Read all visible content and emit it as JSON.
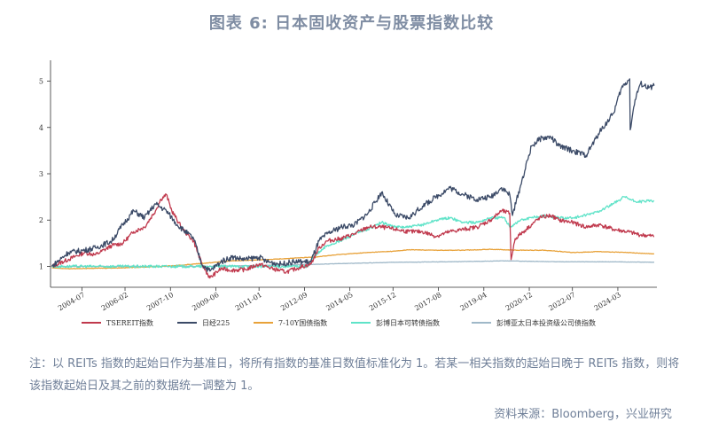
{
  "title": "图表 6:   日本固收资产与股票指数比较",
  "note": "注：以 REITs 指数的起始日作为基准日，将所有指数的基准日数值标准化为 1。若某一相关指数的起始日晚于 REITs 指数，则将该指数起始日及其之前的数据统一调整为 1。",
  "source": "资料来源：Bloomberg，兴业研究",
  "chart_data": {
    "type": "line",
    "title": "图表 6:   日本固收资产与股票指数比较",
    "xlabel": "",
    "ylabel": "",
    "x_ticks": [
      "2004-07",
      "2006-02",
      "2007-10",
      "2009-06",
      "2011-01",
      "2012-09",
      "2014-05",
      "2015-12",
      "2017-08",
      "2019-04",
      "2020-12",
      "2022-07",
      "2024-03"
    ],
    "y_ticks": [
      1,
      2,
      3,
      4,
      5
    ],
    "ylim": [
      0.55,
      5.45
    ],
    "xlim": [
      2003.35,
      2025.6
    ],
    "grid": false,
    "legend_position": "bottom",
    "series": [
      {
        "name": "TSEREIT指数",
        "color": "#c0394d",
        "x": [
          2003.4,
          2004.0,
          2004.6,
          2005.0,
          2005.6,
          2006.0,
          2006.4,
          2006.8,
          2007.2,
          2007.4,
          2007.6,
          2007.8,
          2008.2,
          2008.6,
          2008.9,
          2009.2,
          2009.6,
          2010.0,
          2010.5,
          2011.0,
          2011.5,
          2012.0,
          2012.5,
          2012.9,
          2013.2,
          2013.5,
          2014.0,
          2014.5,
          2015.0,
          2015.5,
          2016.0,
          2016.5,
          2017.0,
          2017.5,
          2018.0,
          2018.5,
          2019.0,
          2019.5,
          2019.9,
          2020.2,
          2020.25,
          2020.4,
          2020.8,
          2021.3,
          2021.7,
          2022.0,
          2022.5,
          2023.0,
          2023.5,
          2024.0,
          2024.5,
          2025.0,
          2025.5
        ],
        "y": [
          1.0,
          1.15,
          1.3,
          1.25,
          1.45,
          1.5,
          1.75,
          1.85,
          2.2,
          2.45,
          2.55,
          2.2,
          1.8,
          1.55,
          1.05,
          0.75,
          0.95,
          0.92,
          0.93,
          1.05,
          0.95,
          0.88,
          0.98,
          1.05,
          1.4,
          1.55,
          1.6,
          1.7,
          1.85,
          1.85,
          1.8,
          1.75,
          1.75,
          1.65,
          1.75,
          1.8,
          1.85,
          2.0,
          2.2,
          2.15,
          1.15,
          1.6,
          1.8,
          2.05,
          2.1,
          2.0,
          1.95,
          1.85,
          1.9,
          1.8,
          1.75,
          1.68,
          1.65
        ]
      },
      {
        "name": "日经225",
        "color": "#3b4a67",
        "x": [
          2003.4,
          2004.0,
          2004.6,
          2005.0,
          2005.6,
          2006.0,
          2006.4,
          2006.8,
          2007.2,
          2007.6,
          2008.0,
          2008.6,
          2008.9,
          2009.2,
          2009.6,
          2010.0,
          2010.5,
          2011.0,
          2011.3,
          2011.8,
          2012.3,
          2012.9,
          2013.2,
          2013.5,
          2014.0,
          2014.5,
          2015.0,
          2015.5,
          2016.0,
          2016.5,
          2017.0,
          2017.5,
          2018.0,
          2018.5,
          2019.0,
          2019.5,
          2019.9,
          2020.2,
          2020.3,
          2020.6,
          2021.0,
          2021.3,
          2021.7,
          2022.0,
          2022.5,
          2023.0,
          2023.5,
          2024.0,
          2024.3,
          2024.6,
          2024.62,
          2024.8,
          2025.0,
          2025.3,
          2025.5
        ],
        "y": [
          1.0,
          1.3,
          1.35,
          1.4,
          1.55,
          1.9,
          2.2,
          2.05,
          2.35,
          2.2,
          1.9,
          1.6,
          1.05,
          0.9,
          1.1,
          1.2,
          1.15,
          1.2,
          1.1,
          1.05,
          1.1,
          1.1,
          1.55,
          1.7,
          1.85,
          1.9,
          2.15,
          2.6,
          2.1,
          2.05,
          2.3,
          2.5,
          2.7,
          2.55,
          2.45,
          2.5,
          2.7,
          2.55,
          2.1,
          2.75,
          3.6,
          3.75,
          3.8,
          3.6,
          3.5,
          3.4,
          3.9,
          4.3,
          4.85,
          5.05,
          3.95,
          4.6,
          4.95,
          4.85,
          4.9
        ]
      },
      {
        "name": "7-10Y国债指数",
        "color": "#e8a23a",
        "x": [
          2003.4,
          2004.0,
          2005.0,
          2006.0,
          2007.0,
          2008.0,
          2009.0,
          2010.0,
          2011.0,
          2012.0,
          2013.0,
          2014.0,
          2015.0,
          2016.0,
          2016.5,
          2017.5,
          2018.5,
          2019.5,
          2020.5,
          2021.5,
          2022.5,
          2023.5,
          2024.5,
          2025.5
        ],
        "y": [
          0.97,
          0.95,
          0.96,
          0.97,
          0.99,
          1.02,
          1.07,
          1.12,
          1.14,
          1.17,
          1.2,
          1.26,
          1.3,
          1.33,
          1.36,
          1.35,
          1.35,
          1.37,
          1.35,
          1.35,
          1.3,
          1.32,
          1.3,
          1.27
        ]
      },
      {
        "name": "彭博日本可转债指数",
        "color": "#5fe3c8",
        "x": [
          2003.4,
          2012.8,
          2013.0,
          2013.5,
          2014.0,
          2014.5,
          2015.0,
          2015.5,
          2016.0,
          2016.5,
          2017.0,
          2017.5,
          2018.0,
          2018.5,
          2019.0,
          2019.5,
          2020.0,
          2020.2,
          2020.6,
          2021.0,
          2021.5,
          2022.0,
          2022.5,
          2023.0,
          2023.5,
          2024.0,
          2024.4,
          2024.8,
          2025.0,
          2025.5
        ],
        "y": [
          1.0,
          1.0,
          1.2,
          1.45,
          1.55,
          1.7,
          1.8,
          1.95,
          1.85,
          1.85,
          1.9,
          2.0,
          2.05,
          1.95,
          1.95,
          2.05,
          2.05,
          1.85,
          2.0,
          2.05,
          2.1,
          2.05,
          2.05,
          2.1,
          2.2,
          2.35,
          2.5,
          2.4,
          2.4,
          2.42
        ]
      },
      {
        "name": "彭博亚太日本投资级公司债指数",
        "color": "#9fb8c8",
        "x": [
          2003.4,
          2006.0,
          2009.0,
          2012.0,
          2014.0,
          2016.0,
          2018.0,
          2020.0,
          2022.0,
          2024.0,
          2025.5
        ],
        "y": [
          1.0,
          1.0,
          1.0,
          1.03,
          1.06,
          1.09,
          1.1,
          1.12,
          1.1,
          1.1,
          1.09
        ]
      }
    ]
  }
}
